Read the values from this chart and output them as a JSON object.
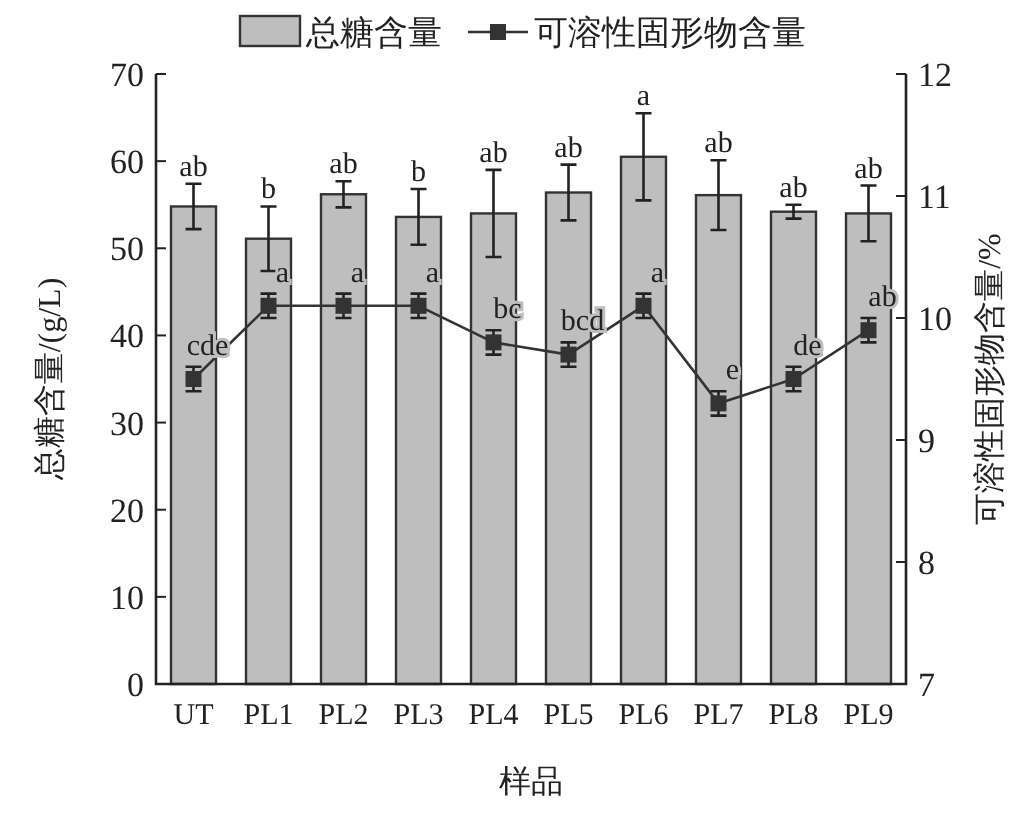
{
  "chart_data": {
    "type": "bar",
    "xlabel": "样品",
    "ylabel": "总糖含量/(g/L)",
    "y2label": "可溶性固形物含量/%",
    "categories": [
      "UT",
      "PL1",
      "PL2",
      "PL3",
      "PL4",
      "PL5",
      "PL6",
      "PL7",
      "PL8",
      "PL9"
    ],
    "series": [
      {
        "name": "总糖含量",
        "color": "#bebebe",
        "values": [
          54.8,
          51.1,
          56.2,
          53.6,
          54.0,
          56.4,
          60.5,
          56.1,
          54.2,
          54.0
        ],
        "errors": [
          2.6,
          3.7,
          1.5,
          3.2,
          5.0,
          3.2,
          5.0,
          4.0,
          0.8,
          3.2
        ]
      },
      {
        "name": "可溶性固形物含量",
        "type": "line",
        "axis": "y2",
        "color": "#333333",
        "marker": "square",
        "values": [
          9.5,
          10.1,
          10.1,
          10.1,
          9.8,
          9.7,
          10.1,
          9.3,
          9.5,
          9.9
        ],
        "errors": [
          0.1,
          0.1,
          0.1,
          0.1,
          0.1,
          0.1,
          0.1,
          0.1,
          0.1,
          0.1
        ]
      }
    ],
    "ylim": [
      0,
      70
    ],
    "yticks": [
      0,
      10,
      20,
      30,
      40,
      50,
      60,
      70
    ],
    "y2lim": [
      7,
      12
    ],
    "y2ticks": [
      7,
      8,
      9,
      10,
      11,
      12
    ],
    "grid": false,
    "legend": "top",
    "annotations": [
      "ab",
      "b",
      "ab",
      "b",
      "ab",
      "ab",
      "a",
      "ab",
      "ab",
      "ab",
      "cde",
      "a",
      "a",
      "a",
      "bc",
      "bcd",
      "a",
      "e",
      "de",
      "ab"
    ]
  }
}
